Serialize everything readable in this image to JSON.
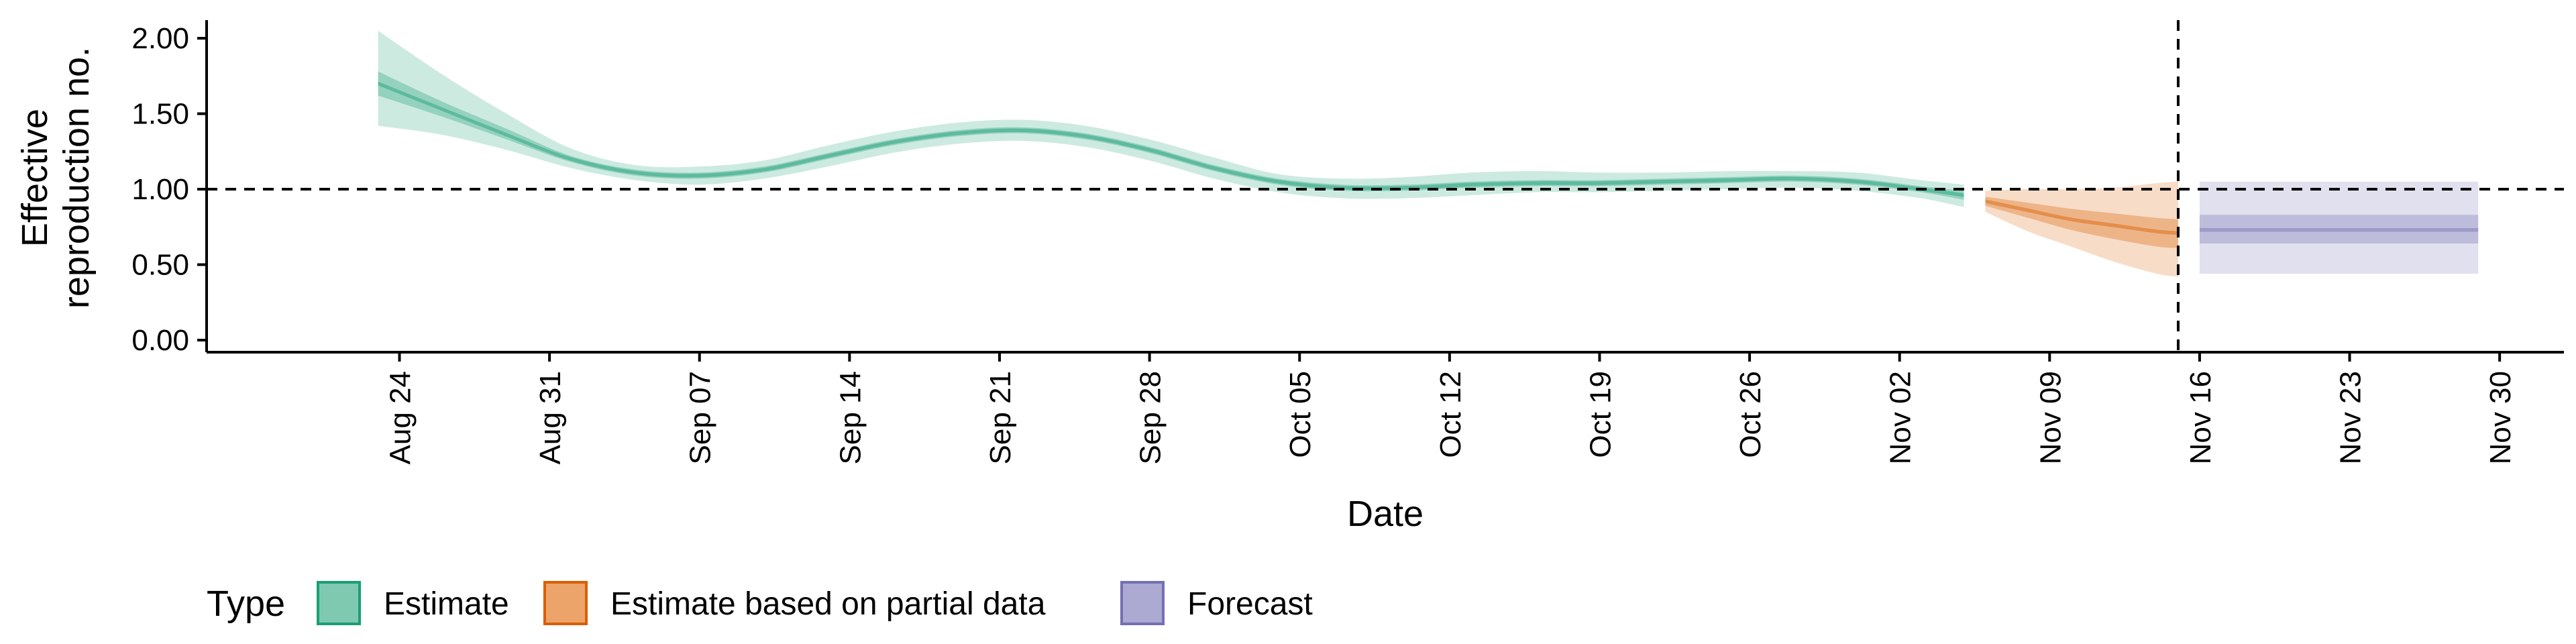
{
  "chart_data": {
    "type": "area",
    "xlabel": "Date",
    "ylabel_lines": [
      "Effective",
      "reproduction no."
    ],
    "x_ticks": [
      "Aug 24",
      "Aug 31",
      "Sep 07",
      "Sep 14",
      "Sep 21",
      "Sep 28",
      "Oct 05",
      "Oct 12",
      "Oct 19",
      "Oct 26",
      "Nov 02",
      "Nov 09",
      "Nov 16",
      "Nov 23",
      "Nov 30"
    ],
    "y_ticks": [
      "0.00",
      "0.50",
      "1.00",
      "1.50",
      "2.00"
    ],
    "ylim": [
      -0.08,
      2.12
    ],
    "xlim": [
      "2020-08-15",
      "2020-12-03"
    ],
    "reference_line_y": 1.0,
    "vertical_line_x": "2020-11-15",
    "grid": false,
    "legend": {
      "title": "Type",
      "position": "bottom-left",
      "items": [
        {
          "label": "Estimate",
          "fill": "#7fc9b0",
          "stroke": "#1b9e77"
        },
        {
          "label": "Estimate based on partial data",
          "fill": "#eda46b",
          "stroke": "#d95f02"
        },
        {
          "label": "Forecast",
          "fill": "#aca9d2",
          "stroke": "#7570b3"
        }
      ]
    },
    "series": [
      {
        "name": "Estimate",
        "color": "#1b9e77",
        "x": [
          "2020-08-23",
          "2020-08-26",
          "2020-08-29",
          "2020-09-01",
          "2020-09-04",
          "2020-09-07",
          "2020-09-10",
          "2020-09-13",
          "2020-09-16",
          "2020-09-19",
          "2020-09-22",
          "2020-09-25",
          "2020-09-28",
          "2020-10-01",
          "2020-10-04",
          "2020-10-07",
          "2020-10-10",
          "2020-10-13",
          "2020-10-16",
          "2020-10-19",
          "2020-10-22",
          "2020-10-25",
          "2020-10-28",
          "2020-10-31",
          "2020-11-03",
          "2020-11-05"
        ],
        "median": [
          1.7,
          1.53,
          1.36,
          1.2,
          1.11,
          1.09,
          1.13,
          1.22,
          1.31,
          1.37,
          1.39,
          1.35,
          1.26,
          1.14,
          1.05,
          1.01,
          1.01,
          1.03,
          1.04,
          1.04,
          1.05,
          1.06,
          1.07,
          1.05,
          1.0,
          0.96
        ],
        "ci50": [
          [
            1.62,
            1.78
          ],
          [
            1.48,
            1.58
          ],
          [
            1.33,
            1.4
          ],
          [
            1.18,
            1.22
          ],
          [
            1.09,
            1.13
          ],
          [
            1.07,
            1.11
          ],
          [
            1.11,
            1.15
          ],
          [
            1.2,
            1.24
          ],
          [
            1.29,
            1.33
          ],
          [
            1.35,
            1.39
          ],
          [
            1.37,
            1.41
          ],
          [
            1.33,
            1.37
          ],
          [
            1.24,
            1.28
          ],
          [
            1.12,
            1.16
          ],
          [
            1.03,
            1.07
          ],
          [
            0.99,
            1.03
          ],
          [
            0.99,
            1.03
          ],
          [
            1.01,
            1.05
          ],
          [
            1.02,
            1.06
          ],
          [
            1.02,
            1.06
          ],
          [
            1.03,
            1.07
          ],
          [
            1.04,
            1.08
          ],
          [
            1.05,
            1.09
          ],
          [
            1.03,
            1.07
          ],
          [
            0.98,
            1.02
          ],
          [
            0.93,
            0.99
          ]
        ],
        "ci90": [
          [
            1.42,
            2.05
          ],
          [
            1.36,
            1.76
          ],
          [
            1.26,
            1.5
          ],
          [
            1.14,
            1.27
          ],
          [
            1.06,
            1.16
          ],
          [
            1.03,
            1.15
          ],
          [
            1.07,
            1.19
          ],
          [
            1.15,
            1.29
          ],
          [
            1.24,
            1.38
          ],
          [
            1.3,
            1.44
          ],
          [
            1.32,
            1.46
          ],
          [
            1.28,
            1.42
          ],
          [
            1.19,
            1.33
          ],
          [
            1.07,
            1.21
          ],
          [
            0.98,
            1.1
          ],
          [
            0.94,
            1.07
          ],
          [
            0.94,
            1.08
          ],
          [
            0.96,
            1.11
          ],
          [
            0.98,
            1.12
          ],
          [
            0.98,
            1.11
          ],
          [
            0.99,
            1.11
          ],
          [
            1.0,
            1.12
          ],
          [
            1.01,
            1.12
          ],
          [
            0.99,
            1.11
          ],
          [
            0.94,
            1.06
          ],
          [
            0.88,
            1.03
          ]
        ]
      },
      {
        "name": "Estimate based on partial data",
        "color": "#d95f02",
        "x": [
          "2020-11-06",
          "2020-11-08",
          "2020-11-10",
          "2020-11-12",
          "2020-11-14",
          "2020-11-15"
        ],
        "median": [
          0.92,
          0.86,
          0.8,
          0.76,
          0.72,
          0.71
        ],
        "ci50": [
          [
            0.89,
            0.95
          ],
          [
            0.81,
            0.91
          ],
          [
            0.73,
            0.87
          ],
          [
            0.67,
            0.84
          ],
          [
            0.62,
            0.81
          ],
          [
            0.61,
            0.8
          ]
        ],
        "ci90": [
          [
            0.85,
            0.99
          ],
          [
            0.72,
            1.0
          ],
          [
            0.62,
            1.0
          ],
          [
            0.52,
            1.01
          ],
          [
            0.44,
            1.04
          ],
          [
            0.42,
            1.05
          ]
        ]
      },
      {
        "name": "Forecast",
        "color": "#7570b3",
        "x": [
          "2020-11-16",
          "2020-11-29"
        ],
        "median": [
          0.73,
          0.73
        ],
        "ci50": [
          [
            0.64,
            0.83
          ],
          [
            0.64,
            0.83
          ]
        ],
        "ci90": [
          [
            0.44,
            1.05
          ],
          [
            0.44,
            1.05
          ]
        ]
      }
    ]
  }
}
